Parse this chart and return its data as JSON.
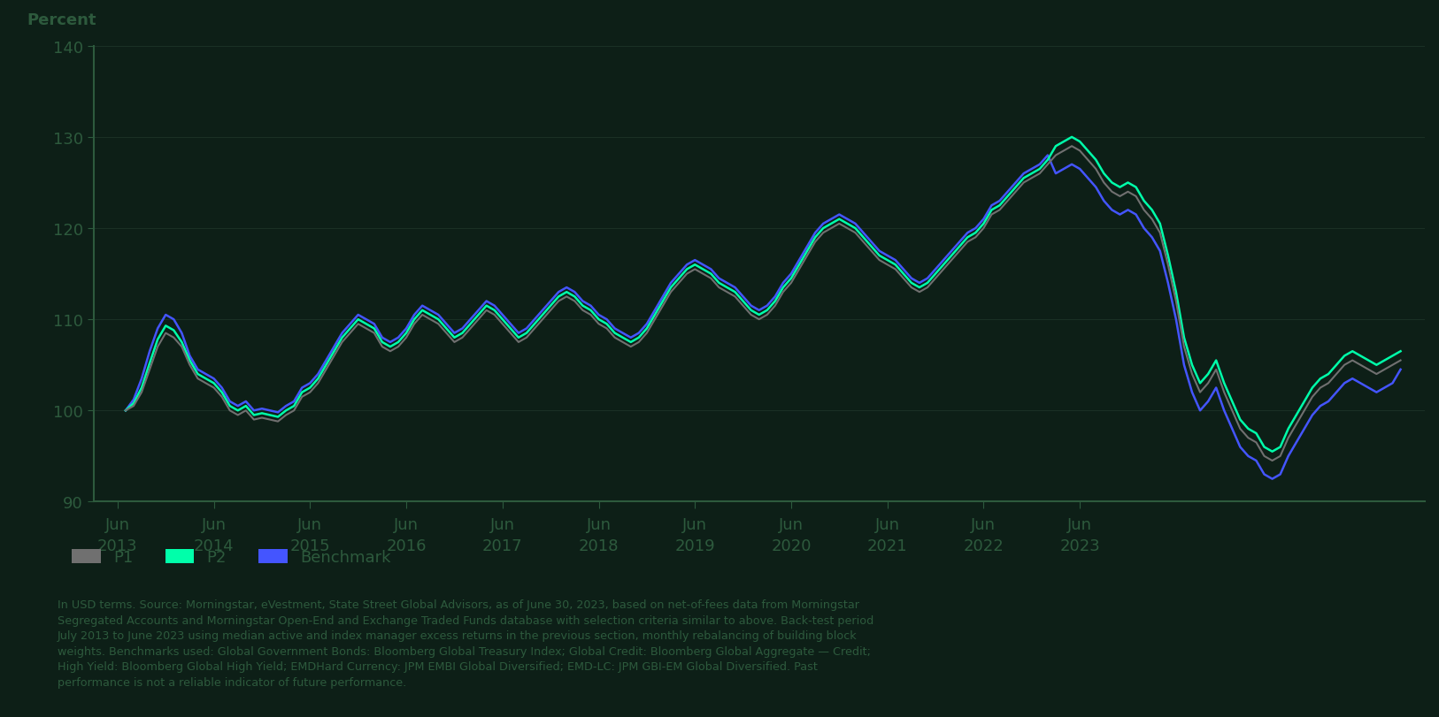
{
  "background_color": "#0d1f17",
  "plot_bg_color": "#0d1f17",
  "text_color": "#1e3d2f",
  "axis_color": "#2d5a3d",
  "grid_color": "#1a3025",
  "ylabel": "Percent",
  "ylim": [
    90,
    140
  ],
  "yticks": [
    90,
    100,
    110,
    120,
    130,
    140
  ],
  "x_tick_years": [
    "2013",
    "2014",
    "2015",
    "2016",
    "2017",
    "2018",
    "2019",
    "2020",
    "2021",
    "2022",
    "2023"
  ],
  "p1_color": "#707070",
  "p2_color": "#00ffaa",
  "benchmark_color": "#4455ff",
  "legend_labels": [
    "P1",
    "P2",
    "Benchmark"
  ],
  "footnote_line1": "In USD terms. Source: Morningstar, eVestment, State Street Global Advisors, as of June 30, 2023, based on net-of-fees data from Morningstar",
  "footnote_line2": "Segregated Accounts and Morningstar Open-End and Exchange Traded Funds database with selection criteria similar to above. Back-test period",
  "footnote_line3": "July 2013 to June 2023 using median active and index manager excess returns in the previous section, monthly rebalancing of building block",
  "footnote_line4": "weights. Benchmarks used: Global Government Bonds: Bloomberg Global Treasury Index; Global Credit: Bloomberg Global Aggregate — Credit;",
  "footnote_line5": "High Yield: Bloomberg Global High Yield; EMDHard Currency: JPM EMBI Global Diversified; EMD-LC: JPM GBI-EM Global Diversified. Past",
  "footnote_line6": "performance is not a reliable indicator of future performance.",
  "p1_values": [
    100.0,
    100.5,
    102.0,
    104.5,
    107.0,
    108.5,
    108.0,
    107.0,
    105.0,
    103.5,
    103.0,
    102.5,
    101.5,
    100.0,
    99.5,
    100.0,
    99.0,
    99.2,
    99.0,
    98.8,
    99.5,
    100.0,
    101.5,
    102.0,
    103.0,
    104.5,
    106.0,
    107.5,
    108.5,
    109.5,
    109.0,
    108.5,
    107.0,
    106.5,
    107.0,
    108.0,
    109.5,
    110.5,
    110.0,
    109.5,
    108.5,
    107.5,
    108.0,
    109.0,
    110.0,
    111.0,
    110.5,
    109.5,
    108.5,
    107.5,
    108.0,
    109.0,
    110.0,
    111.0,
    112.0,
    112.5,
    112.0,
    111.0,
    110.5,
    109.5,
    109.0,
    108.0,
    107.5,
    107.0,
    107.5,
    108.5,
    110.0,
    111.5,
    113.0,
    114.0,
    115.0,
    115.5,
    115.0,
    114.5,
    113.5,
    113.0,
    112.5,
    111.5,
    110.5,
    110.0,
    110.5,
    111.5,
    113.0,
    114.0,
    115.5,
    117.0,
    118.5,
    119.5,
    120.0,
    120.5,
    120.0,
    119.5,
    118.5,
    117.5,
    116.5,
    116.0,
    115.5,
    114.5,
    113.5,
    113.0,
    113.5,
    114.5,
    115.5,
    116.5,
    117.5,
    118.5,
    119.0,
    120.0,
    121.5,
    122.0,
    123.0,
    124.0,
    125.0,
    125.5,
    126.0,
    127.0,
    128.0,
    128.5,
    129.0,
    128.5,
    127.5,
    126.5,
    125.0,
    124.0,
    123.5,
    124.0,
    123.5,
    122.0,
    121.0,
    119.5,
    116.0,
    112.0,
    107.0,
    104.0,
    102.0,
    103.0,
    104.5,
    102.0,
    100.0,
    98.0,
    97.0,
    96.5,
    95.0,
    94.5,
    95.0,
    97.0,
    98.5,
    100.0,
    101.5,
    102.5,
    103.0,
    104.0,
    105.0,
    105.5,
    105.0,
    104.5,
    104.0,
    104.5,
    105.0,
    105.5
  ],
  "p2_values": [
    100.0,
    100.8,
    102.5,
    105.2,
    107.8,
    109.3,
    108.8,
    107.5,
    105.5,
    104.0,
    103.5,
    103.0,
    102.0,
    100.5,
    100.0,
    100.5,
    99.5,
    99.7,
    99.5,
    99.3,
    100.0,
    100.5,
    102.0,
    102.5,
    103.5,
    105.0,
    106.5,
    108.0,
    109.0,
    110.0,
    109.5,
    109.0,
    107.5,
    107.0,
    107.5,
    108.5,
    110.0,
    111.0,
    110.5,
    110.0,
    109.0,
    108.0,
    108.5,
    109.5,
    110.5,
    111.5,
    111.0,
    110.0,
    109.0,
    108.0,
    108.5,
    109.5,
    110.5,
    111.5,
    112.5,
    113.0,
    112.5,
    111.5,
    111.0,
    110.0,
    109.5,
    108.5,
    108.0,
    107.5,
    108.0,
    109.0,
    110.5,
    112.0,
    113.5,
    114.5,
    115.5,
    116.0,
    115.5,
    115.0,
    114.0,
    113.5,
    113.0,
    112.0,
    111.0,
    110.5,
    111.0,
    112.0,
    113.5,
    114.5,
    116.0,
    117.5,
    119.0,
    120.0,
    120.5,
    121.0,
    120.5,
    120.0,
    119.0,
    118.0,
    117.0,
    116.5,
    116.0,
    115.0,
    114.0,
    113.5,
    114.0,
    115.0,
    116.0,
    117.0,
    118.0,
    119.0,
    119.5,
    120.5,
    122.0,
    122.5,
    123.5,
    124.5,
    125.5,
    126.0,
    126.5,
    127.5,
    129.0,
    129.5,
    130.0,
    129.5,
    128.5,
    127.5,
    126.0,
    125.0,
    124.5,
    125.0,
    124.5,
    123.0,
    122.0,
    120.5,
    117.0,
    113.0,
    108.0,
    105.0,
    103.0,
    104.0,
    105.5,
    103.0,
    101.0,
    99.0,
    98.0,
    97.5,
    96.0,
    95.5,
    96.0,
    98.0,
    99.5,
    101.0,
    102.5,
    103.5,
    104.0,
    105.0,
    106.0,
    106.5,
    106.0,
    105.5,
    105.0,
    105.5,
    106.0,
    106.5
  ],
  "benchmark_values": [
    100.0,
    101.2,
    103.5,
    106.5,
    109.0,
    110.5,
    110.0,
    108.5,
    106.0,
    104.5,
    104.0,
    103.5,
    102.5,
    101.0,
    100.5,
    101.0,
    100.0,
    100.2,
    100.0,
    99.8,
    100.5,
    101.0,
    102.5,
    103.0,
    104.0,
    105.5,
    107.0,
    108.5,
    109.5,
    110.5,
    110.0,
    109.5,
    108.0,
    107.5,
    108.0,
    109.0,
    110.5,
    111.5,
    111.0,
    110.5,
    109.5,
    108.5,
    109.0,
    110.0,
    111.0,
    112.0,
    111.5,
    110.5,
    109.5,
    108.5,
    109.0,
    110.0,
    111.0,
    112.0,
    113.0,
    113.5,
    113.0,
    112.0,
    111.5,
    110.5,
    110.0,
    109.0,
    108.5,
    108.0,
    108.5,
    109.5,
    111.0,
    112.5,
    114.0,
    115.0,
    116.0,
    116.5,
    116.0,
    115.5,
    114.5,
    114.0,
    113.5,
    112.5,
    111.5,
    111.0,
    111.5,
    112.5,
    114.0,
    115.0,
    116.5,
    118.0,
    119.5,
    120.5,
    121.0,
    121.5,
    121.0,
    120.5,
    119.5,
    118.5,
    117.5,
    117.0,
    116.5,
    115.5,
    114.5,
    114.0,
    114.5,
    115.5,
    116.5,
    117.5,
    118.5,
    119.5,
    120.0,
    121.0,
    122.5,
    123.0,
    124.0,
    125.0,
    126.0,
    126.5,
    127.0,
    128.0,
    126.0,
    126.5,
    127.0,
    126.5,
    125.5,
    124.5,
    123.0,
    122.0,
    121.5,
    122.0,
    121.5,
    120.0,
    119.0,
    117.5,
    114.0,
    110.0,
    105.0,
    102.0,
    100.0,
    101.0,
    102.5,
    100.0,
    98.0,
    96.0,
    95.0,
    94.5,
    93.0,
    92.5,
    93.0,
    95.0,
    96.5,
    98.0,
    99.5,
    100.5,
    101.0,
    102.0,
    103.0,
    103.5,
    103.0,
    102.5,
    102.0,
    102.5,
    103.0,
    104.5
  ]
}
